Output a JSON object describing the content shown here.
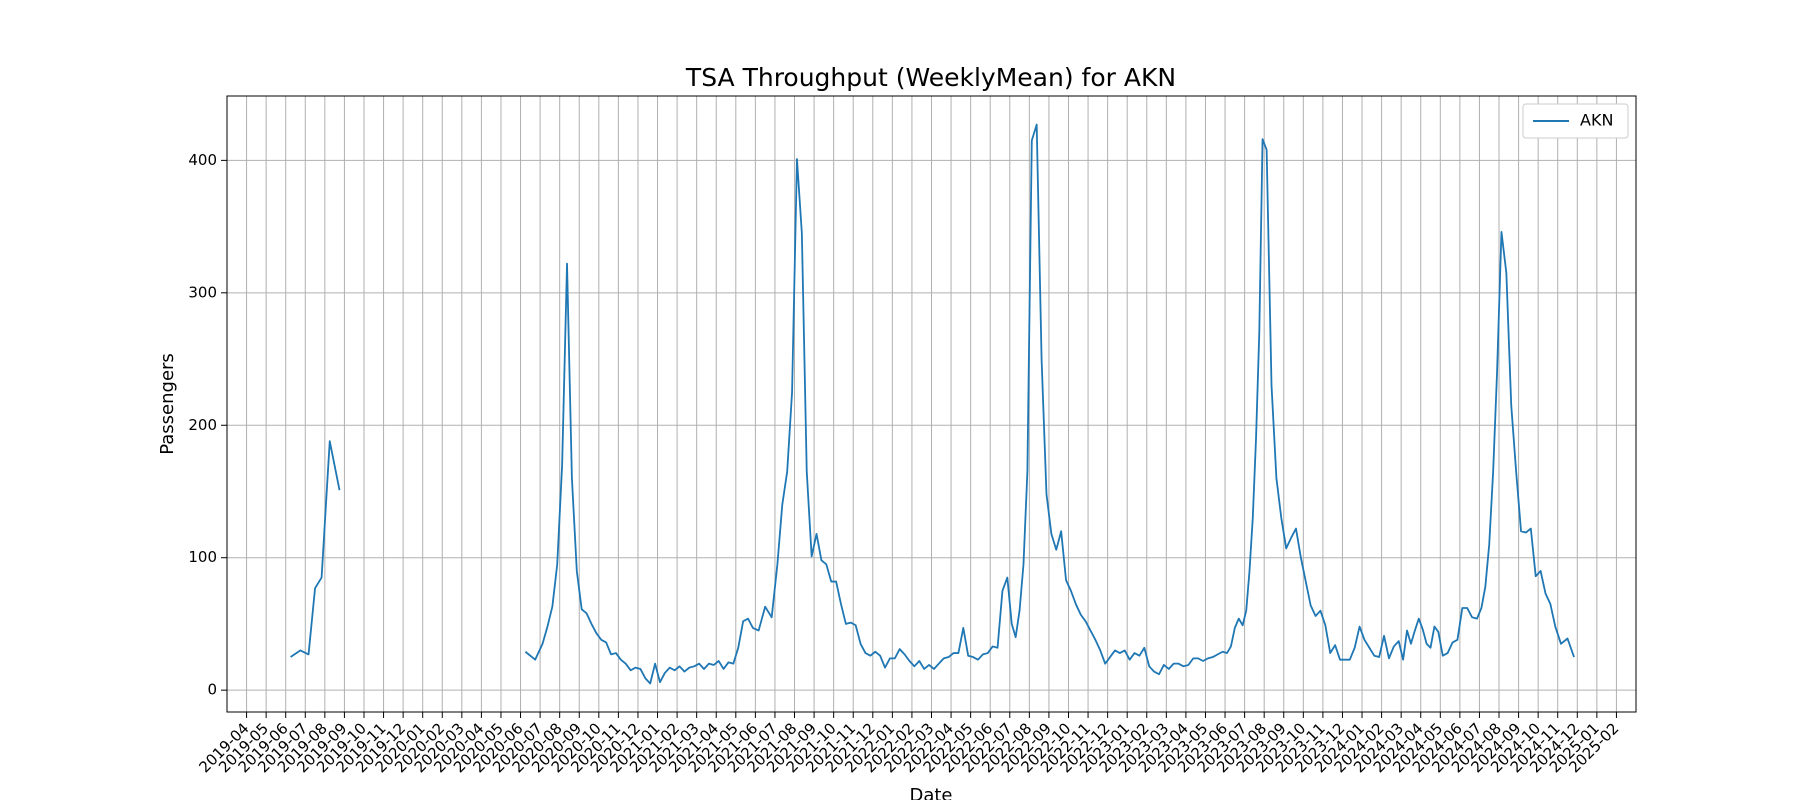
{
  "chart_data": {
    "type": "line",
    "title": "TSA Throughput (WeeklyMean) for AKN",
    "x_label": "Date",
    "y_label": "Passengers",
    "x": [
      "2019-06",
      "2019-06",
      "2019-07",
      "2019-07",
      "2019-07",
      "2019-08",
      "2019-08",
      "2019-09",
      "2020-06",
      "2020-06",
      "2020-07",
      "2020-07",
      "2020-07",
      "2020-07",
      "2020-08",
      "2020-08",
      "2020-08",
      "2020-08",
      "2020-09",
      "2020-09",
      "2020-09",
      "2020-09",
      "2020-10",
      "2020-10",
      "2020-10",
      "2020-10",
      "2020-11",
      "2020-11",
      "2020-11",
      "2020-11",
      "2020-12",
      "2020-12",
      "2020-12",
      "2020-12",
      "2021-01",
      "2021-01",
      "2021-01",
      "2021-01",
      "2021-02",
      "2021-02",
      "2021-02",
      "2021-02",
      "2021-03",
      "2021-03",
      "2021-03",
      "2021-03",
      "2021-04",
      "2021-04",
      "2021-04",
      "2021-04",
      "2021-05",
      "2021-05",
      "2021-05",
      "2021-05",
      "2021-06",
      "2021-06",
      "2021-06",
      "2021-07",
      "2021-07",
      "2021-07",
      "2021-07",
      "2021-08",
      "2021-08",
      "2021-08",
      "2021-08",
      "2021-09",
      "2021-09",
      "2021-09",
      "2021-09",
      "2021-10",
      "2021-10",
      "2021-10",
      "2021-10",
      "2021-11",
      "2021-11",
      "2021-11",
      "2021-11",
      "2021-12",
      "2021-12",
      "2021-12",
      "2021-12",
      "2022-01",
      "2022-01",
      "2022-01",
      "2022-01",
      "2022-02",
      "2022-02",
      "2022-02",
      "2022-02",
      "2022-03",
      "2022-03",
      "2022-03",
      "2022-03",
      "2022-04",
      "2022-04",
      "2022-04",
      "2022-04",
      "2022-05",
      "2022-05",
      "2022-05",
      "2022-05",
      "2022-06",
      "2022-06",
      "2022-06",
      "2022-06",
      "2022-07",
      "2022-07",
      "2022-07",
      "2022-07",
      "2022-07",
      "2022-08",
      "2022-08",
      "2022-08",
      "2022-08",
      "2022-09",
      "2022-09",
      "2022-09",
      "2022-09",
      "2022-10",
      "2022-10",
      "2022-10",
      "2022-10",
      "2022-11",
      "2022-11",
      "2022-11",
      "2022-11",
      "2022-12",
      "2022-12",
      "2022-12",
      "2022-12",
      "2023-01",
      "2023-01",
      "2023-01",
      "2023-01",
      "2023-02",
      "2023-02",
      "2023-02",
      "2023-02",
      "2023-03",
      "2023-03",
      "2023-03",
      "2023-03",
      "2023-04",
      "2023-04",
      "2023-04",
      "2023-04",
      "2023-05",
      "2023-05",
      "2023-05",
      "2023-05",
      "2023-06",
      "2023-06",
      "2023-06",
      "2023-06",
      "2023-06",
      "2023-07",
      "2023-07",
      "2023-07",
      "2023-07",
      "2023-07",
      "2023-07",
      "2023-08",
      "2023-08",
      "2023-08",
      "2023-08",
      "2023-09",
      "2023-09",
      "2023-09",
      "2023-09",
      "2023-10",
      "2023-10",
      "2023-10",
      "2023-10",
      "2023-11",
      "2023-11",
      "2023-11",
      "2023-11",
      "2023-12",
      "2023-12",
      "2023-12",
      "2023-12",
      "2024-01",
      "2024-01",
      "2024-01",
      "2024-01",
      "2024-02",
      "2024-02",
      "2024-02",
      "2024-02",
      "2024-03",
      "2024-03",
      "2024-03",
      "2024-03",
      "2024-03",
      "2024-04",
      "2024-04",
      "2024-04",
      "2024-04",
      "2024-04",
      "2024-05",
      "2024-05",
      "2024-05",
      "2024-05",
      "2024-06",
      "2024-06",
      "2024-06",
      "2024-06",
      "2024-07",
      "2024-07",
      "2024-07",
      "2024-07",
      "2024-07",
      "2024-08",
      "2024-08",
      "2024-08",
      "2024-08",
      "2024-09",
      "2024-09",
      "2024-09",
      "2024-09",
      "2024-10",
      "2024-10",
      "2024-10",
      "2024-10",
      "2024-11",
      "2024-11",
      "2024-11"
    ],
    "series": [
      {
        "name": "AKN",
        "color": "#1f77b4",
        "values": [
          25,
          30,
          27,
          77,
          85,
          188,
          151,
          null,
          29,
          23,
          35,
          48,
          63,
          95,
          170,
          322,
          160,
          90,
          61,
          58,
          50,
          43,
          38,
          36,
          27,
          28,
          23,
          20,
          15,
          17,
          16,
          9,
          5,
          20,
          6,
          13,
          17,
          15,
          18,
          14,
          17,
          18,
          20,
          16,
          20,
          19,
          22,
          16,
          21,
          20,
          32,
          52,
          54,
          47,
          45,
          63,
          55,
          95,
          140,
          165,
          225,
          401,
          345,
          165,
          101,
          118,
          98,
          95,
          82,
          82,
          65,
          50,
          51,
          49,
          35,
          28,
          26,
          29,
          26,
          17,
          24,
          24,
          31,
          27,
          22,
          18,
          22,
          16,
          19,
          16,
          20,
          24,
          25,
          28,
          28,
          47,
          26,
          25,
          23,
          27,
          28,
          33,
          32,
          75,
          85,
          50,
          40,
          60,
          95,
          165,
          415,
          427,
          250,
          148,
          118,
          106,
          120,
          83,
          75,
          65,
          57,
          52,
          45,
          38,
          30,
          20,
          25,
          30,
          28,
          30,
          23,
          28,
          26,
          32,
          18,
          14,
          12,
          19,
          16,
          20,
          20,
          18,
          19,
          24,
          24,
          22,
          24,
          25,
          27,
          29,
          28,
          33,
          47,
          54,
          49,
          60,
          90,
          130,
          190,
          270,
          416,
          408,
          230,
          160,
          130,
          107,
          115,
          122,
          100,
          82,
          64,
          56,
          60,
          49,
          28,
          34,
          23,
          23,
          23,
          32,
          48,
          38,
          32,
          26,
          25,
          41,
          24,
          33,
          37,
          23,
          45,
          35,
          45,
          54,
          46,
          35,
          32,
          48,
          44,
          26,
          28,
          36,
          38,
          62,
          62,
          55,
          54,
          62,
          78,
          110,
          165,
          240,
          346,
          315,
          215,
          165,
          120,
          119,
          122,
          86,
          90,
          73,
          65,
          48,
          35,
          39,
          25
        ]
      }
    ],
    "xlim": [
      "2019-03",
      "2025-03"
    ],
    "xticks": [
      "2019-04",
      "2019-05",
      "2019-06",
      "2019-07",
      "2019-08",
      "2019-09",
      "2019-10",
      "2019-11",
      "2019-12",
      "2020-01",
      "2020-02",
      "2020-03",
      "2020-04",
      "2020-05",
      "2020-06",
      "2020-07",
      "2020-08",
      "2020-09",
      "2020-10",
      "2020-11",
      "2020-12",
      "2021-01",
      "2021-02",
      "2021-03",
      "2021-04",
      "2021-05",
      "2021-06",
      "2021-07",
      "2021-08",
      "2021-09",
      "2021-10",
      "2021-11",
      "2021-12",
      "2022-01",
      "2022-02",
      "2022-03",
      "2022-04",
      "2022-05",
      "2022-06",
      "2022-07",
      "2022-08",
      "2022-09",
      "2022-10",
      "2022-11",
      "2022-12",
      "2023-01",
      "2023-02",
      "2023-03",
      "2023-04",
      "2023-05",
      "2023-06",
      "2023-07",
      "2023-08",
      "2023-09",
      "2023-10",
      "2023-11",
      "2023-12",
      "2024-01",
      "2024-02",
      "2024-03",
      "2024-04",
      "2024-05",
      "2024-06",
      "2024-07",
      "2024-08",
      "2024-09",
      "2024-10",
      "2024-11",
      "2024-12",
      "2025-01",
      "2025-02"
    ],
    "ylim": [
      -16.5,
      448.6
    ],
    "yticks": [
      0,
      100,
      200,
      300,
      400
    ],
    "grid": true,
    "legend": "upper right"
  }
}
